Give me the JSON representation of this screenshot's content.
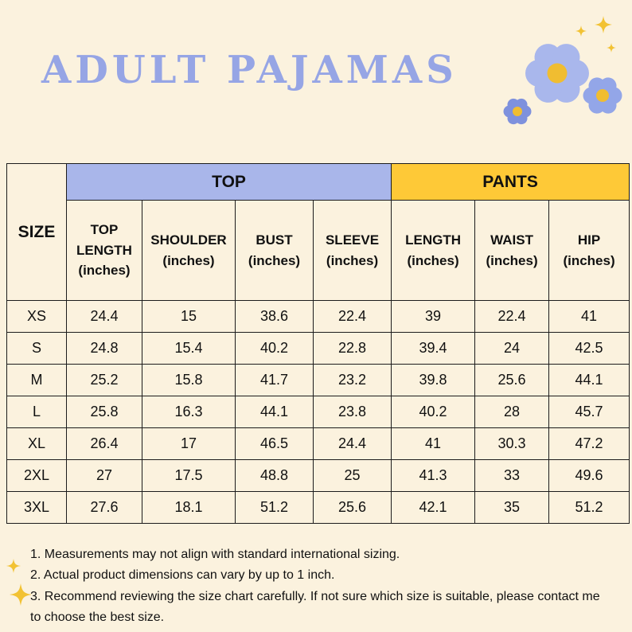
{
  "title": "ADULT PAJAMAS",
  "table": {
    "size_header": "SIZE",
    "top_group": "TOP",
    "pants_group": "PANTS",
    "columns": [
      {
        "key": "top-length",
        "name": "TOP LENGTH",
        "unit": "(inches)"
      },
      {
        "key": "shoulder",
        "name": "SHOULDER",
        "unit": "(inches)"
      },
      {
        "key": "bust",
        "name": "BUST",
        "unit": "(inches)"
      },
      {
        "key": "sleeve",
        "name": "SLEEVE",
        "unit": "(inches)"
      },
      {
        "key": "length",
        "name": "LENGTH",
        "unit": "(inches)"
      },
      {
        "key": "waist",
        "name": "WAIST",
        "unit": "(inches)"
      },
      {
        "key": "hip",
        "name": "HIP",
        "unit": "(inches)"
      }
    ]
  },
  "chart_data": {
    "type": "table",
    "title": "ADULT PAJAMAS",
    "row_header": "SIZE",
    "column_groups": [
      {
        "label": "TOP",
        "columns": [
          "TOP LENGTH (inches)",
          "SHOULDER (inches)",
          "BUST (inches)",
          "SLEEVE (inches)"
        ]
      },
      {
        "label": "PANTS",
        "columns": [
          "LENGTH (inches)",
          "WAIST (inches)",
          "HIP (inches)"
        ]
      }
    ],
    "rows": [
      {
        "size": "XS",
        "values": [
          24.4,
          15,
          38.6,
          22.4,
          39,
          22.4,
          41
        ]
      },
      {
        "size": "S",
        "values": [
          24.8,
          15.4,
          40.2,
          22.8,
          39.4,
          24,
          42.5
        ]
      },
      {
        "size": "M",
        "values": [
          25.2,
          15.8,
          41.7,
          23.2,
          39.8,
          25.6,
          44.1
        ]
      },
      {
        "size": "L",
        "values": [
          25.8,
          16.3,
          44.1,
          23.8,
          40.2,
          28,
          45.7
        ]
      },
      {
        "size": "XL",
        "values": [
          26.4,
          17,
          46.5,
          24.4,
          41,
          30.3,
          47.2
        ]
      },
      {
        "size": "2XL",
        "values": [
          27,
          17.5,
          48.8,
          25,
          41.3,
          33,
          49.6
        ]
      },
      {
        "size": "3XL",
        "values": [
          27.6,
          18.1,
          51.2,
          25.6,
          42.1,
          35,
          51.2
        ]
      }
    ]
  },
  "notes": [
    "1. Measurements may not align with standard international sizing.",
    "2. Actual product dimensions can vary by up to 1 inch.",
    "3. Recommend reviewing the size chart carefully. If not sure which size is suitable, please contact me to choose the best size."
  ],
  "decorations": {
    "top_right": [
      "flower-icon",
      "flower-icon",
      "flower-icon",
      "sparkle-icon",
      "sparkle-icon",
      "sparkle-icon"
    ],
    "bottom_left": [
      "sparkle-icon",
      "sparkle-icon"
    ]
  },
  "colors": {
    "background": "#fbf2de",
    "title_text": "#96a5e5",
    "top_header_bg": "#a9b6ea",
    "pants_header_bg": "#fec937",
    "table_border": "#1c1c1c",
    "body_text": "#111111",
    "flower_petal_light": "#a9b7ec",
    "flower_petal_mid": "#93a6e8",
    "flower_petal_dark": "#7e91dd",
    "flower_center": "#f0bd31",
    "sparkle": "#f2c233"
  }
}
